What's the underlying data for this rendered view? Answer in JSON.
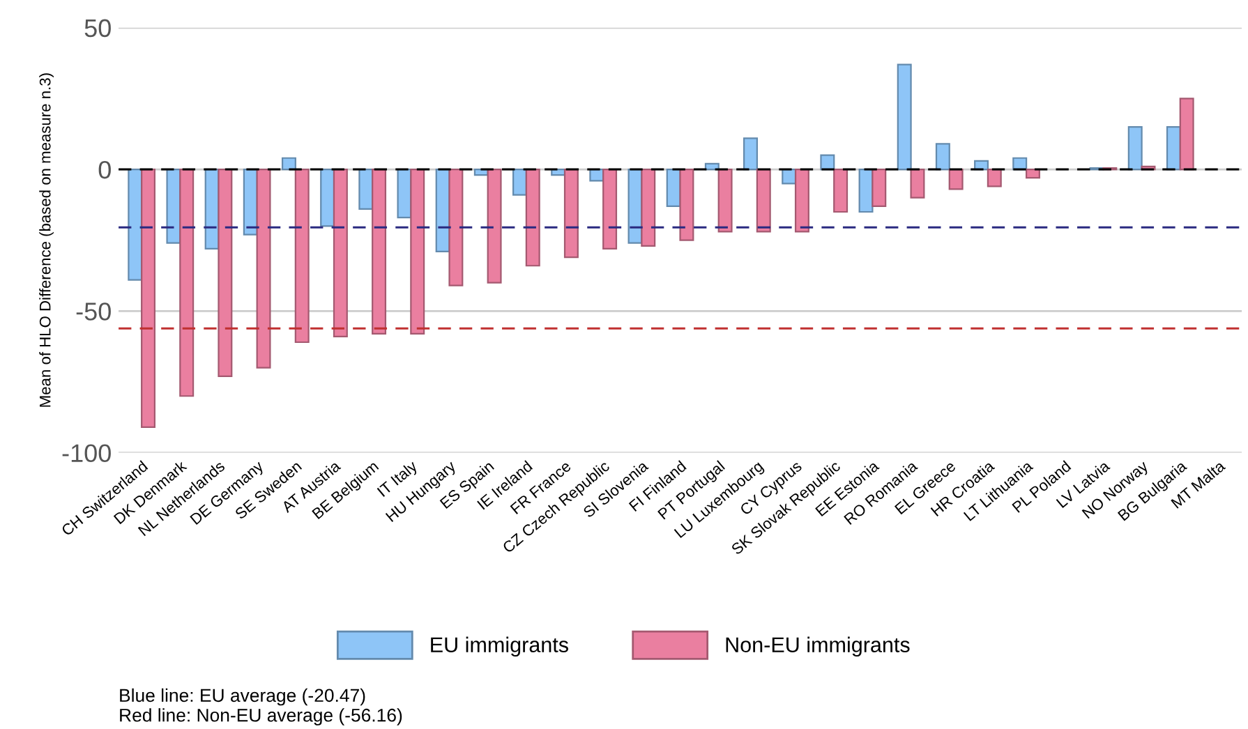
{
  "chart_data": {
    "type": "bar",
    "ylabel": "Mean of HLO Difference (based on measure n.3)",
    "categories": [
      "CH Switzerland",
      "DK Denmark",
      "NL Netherlands",
      "DE Germany",
      "SE Sweden",
      "AT Austria",
      "BE Belgium",
      "IT Italy",
      "HU Hungary",
      "ES Spain",
      "IE Ireland",
      "FR France",
      "CZ Czech Republic",
      "SI Slovenia",
      "FI Finland",
      "PT Portugal",
      "LU Luxembourg",
      "CY Cyprus",
      "SK Slovak Republic",
      "EE Estonia",
      "RO Romania",
      "EL Greece",
      "HR Croatia",
      "LT Lithuania",
      "PL Poland",
      "LV Latvia",
      "NO Norway",
      "BG Bulgaria",
      "MT Malta"
    ],
    "series": [
      {
        "name": "EU immigrants",
        "color": "#8ec5f7",
        "values": [
          -39,
          -26,
          -28,
          -23,
          4,
          -20,
          -14,
          -17,
          -29,
          -2,
          -9,
          -2,
          -4,
          -26,
          -13,
          2,
          11,
          -5,
          5,
          -15,
          37,
          9,
          3,
          4,
          null,
          0.5,
          15,
          15,
          null
        ]
      },
      {
        "name": "Non-EU immigrants",
        "color": "#ea7fa0",
        "values": [
          -91,
          -80,
          -73,
          -70,
          -61,
          -59,
          -58,
          -58,
          -41,
          -40,
          -34,
          -31,
          -28,
          -27,
          -25,
          -22,
          -22,
          -22,
          -15,
          -13,
          -10,
          -7,
          -6,
          -3,
          null,
          0.5,
          1,
          25,
          null
        ]
      }
    ],
    "ylim": [
      -100,
      50
    ],
    "yticks": [
      -100,
      -50,
      0,
      50
    ],
    "grid": "y",
    "legend": "bottom",
    "ref_lines": [
      {
        "axis": "y",
        "value": 0,
        "color": "#000000",
        "line_style": "dashed"
      },
      {
        "axis": "y",
        "value": -20.47,
        "color": "#2a2a80",
        "line_style": "dashed"
      },
      {
        "axis": "y",
        "value": -56.16,
        "color": "#c03030",
        "line_style": "dashed"
      }
    ],
    "annotations": [
      "Blue line: EU average (-20.47)\nRed line: Non-EU average (-56.16)"
    ]
  }
}
